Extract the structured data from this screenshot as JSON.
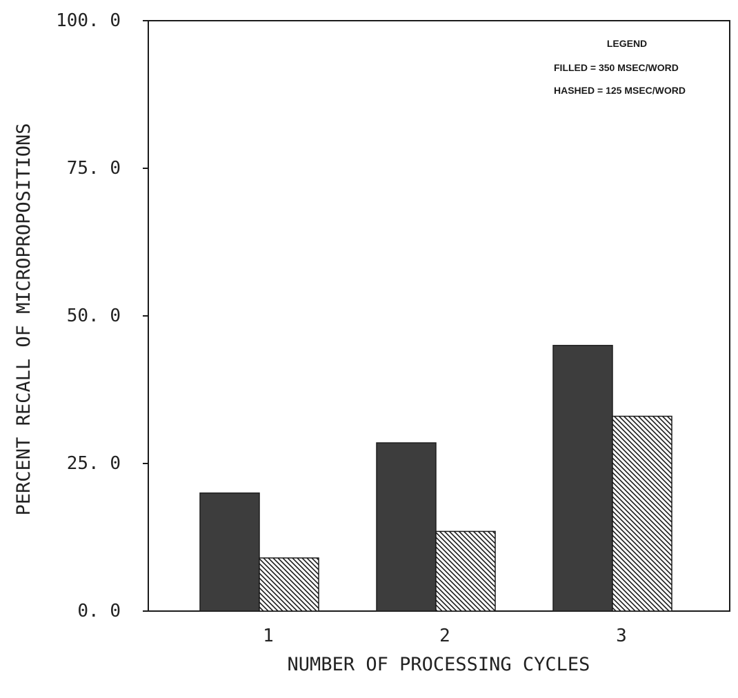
{
  "chart_data": {
    "type": "bar",
    "title": "",
    "xlabel": "NUMBER OF PROCESSING CYCLES",
    "ylabel": "PERCENT RECALL OF MICROPROPOSITIONS",
    "categories": [
      "1",
      "2",
      "3"
    ],
    "ylim": [
      0,
      100
    ],
    "yticks": [
      0,
      25,
      50,
      75,
      100
    ],
    "ytick_labels": [
      "0. 0",
      "25. 0",
      "50. 0",
      "75. 0",
      "100. 0"
    ],
    "grid": false,
    "legend": {
      "placement": "top-right",
      "title": "LEGEND",
      "entries": [
        "FILLED = 350 MSEC/WORD",
        "HASHED = 125 MSEC/WORD"
      ]
    },
    "series": [
      {
        "name": "FILLED = 350 MSEC/WORD",
        "style": "filled",
        "color": "#3d3d3d",
        "values": [
          20,
          28.5,
          45
        ]
      },
      {
        "name": "HASHED = 125 MSEC/WORD",
        "style": "hashed",
        "color": "#1a1a1a",
        "values": [
          9,
          13.5,
          33
        ]
      }
    ]
  }
}
